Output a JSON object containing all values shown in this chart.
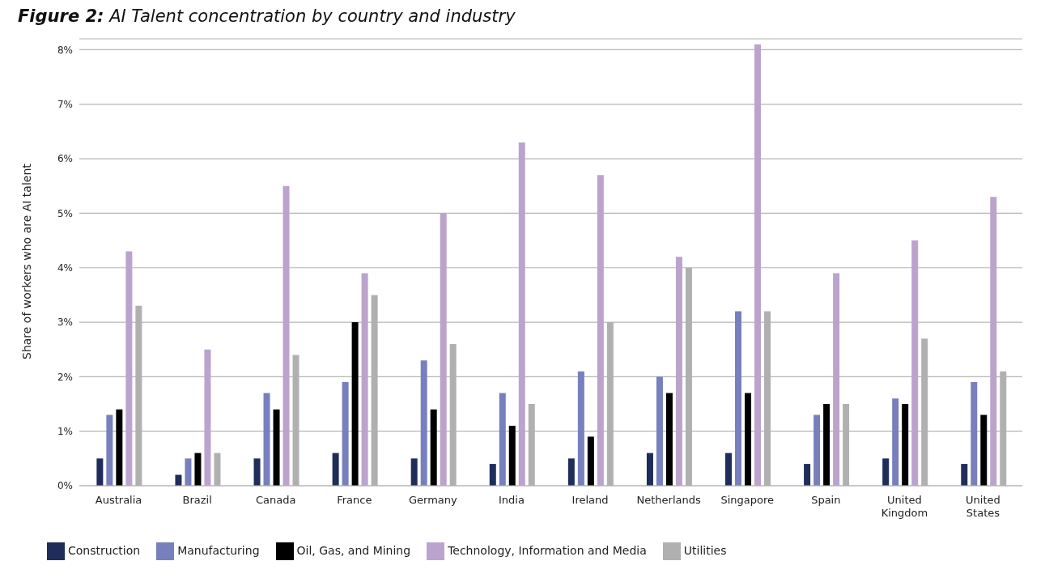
{
  "chart_data": {
    "type": "bar",
    "title": "Figure 2: AI Talent concentration by country and industry",
    "ylabel": "Share of workers who are AI talent",
    "categories": [
      "Australia",
      "Brazil",
      "Canada",
      "France",
      "Germany",
      "India",
      "Ireland",
      "Netherlands",
      "Singapore",
      "Spain",
      "United Kingdom",
      "United States"
    ],
    "series": [
      {
        "name": "Construction",
        "color": "#1f2d5a",
        "values": [
          0.5,
          0.2,
          0.5,
          0.6,
          0.5,
          0.4,
          0.5,
          0.6,
          0.6,
          0.4,
          0.5,
          0.4
        ]
      },
      {
        "name": "Manufacturing",
        "color": "#7780bd",
        "values": [
          1.3,
          0.5,
          1.7,
          1.9,
          2.3,
          1.7,
          2.1,
          2.0,
          3.2,
          1.3,
          1.6,
          1.9
        ]
      },
      {
        "name": "Oil, Gas, and Mining",
        "color": "#000000",
        "values": [
          1.4,
          0.6,
          1.4,
          3.0,
          1.4,
          1.1,
          0.9,
          1.7,
          1.7,
          1.5,
          1.5,
          1.3
        ]
      },
      {
        "name": "Technology, Information and Media",
        "color": "#bca3cd",
        "values": [
          4.3,
          2.5,
          5.5,
          3.9,
          5.0,
          6.3,
          5.7,
          4.2,
          8.1,
          3.9,
          4.5,
          5.3
        ]
      },
      {
        "name": "Utilities",
        "color": "#b0b0b0",
        "values": [
          3.3,
          0.6,
          2.4,
          3.5,
          2.6,
          1.5,
          3.0,
          4.0,
          3.2,
          1.5,
          2.7,
          2.1
        ]
      }
    ],
    "ylim": [
      0,
      8.2
    ],
    "yticks": [
      {
        "value": 0,
        "label": "0%"
      },
      {
        "value": 1,
        "label": "1%"
      },
      {
        "value": 2,
        "label": "2%"
      },
      {
        "value": 3,
        "label": "3%"
      },
      {
        "value": 4,
        "label": "4%"
      },
      {
        "value": 5,
        "label": "5%"
      },
      {
        "value": 6,
        "label": "6%"
      },
      {
        "value": 7,
        "label": "7%"
      },
      {
        "value": 8,
        "label": "8%"
      }
    ],
    "grid": "y",
    "legend": "bottom left"
  }
}
